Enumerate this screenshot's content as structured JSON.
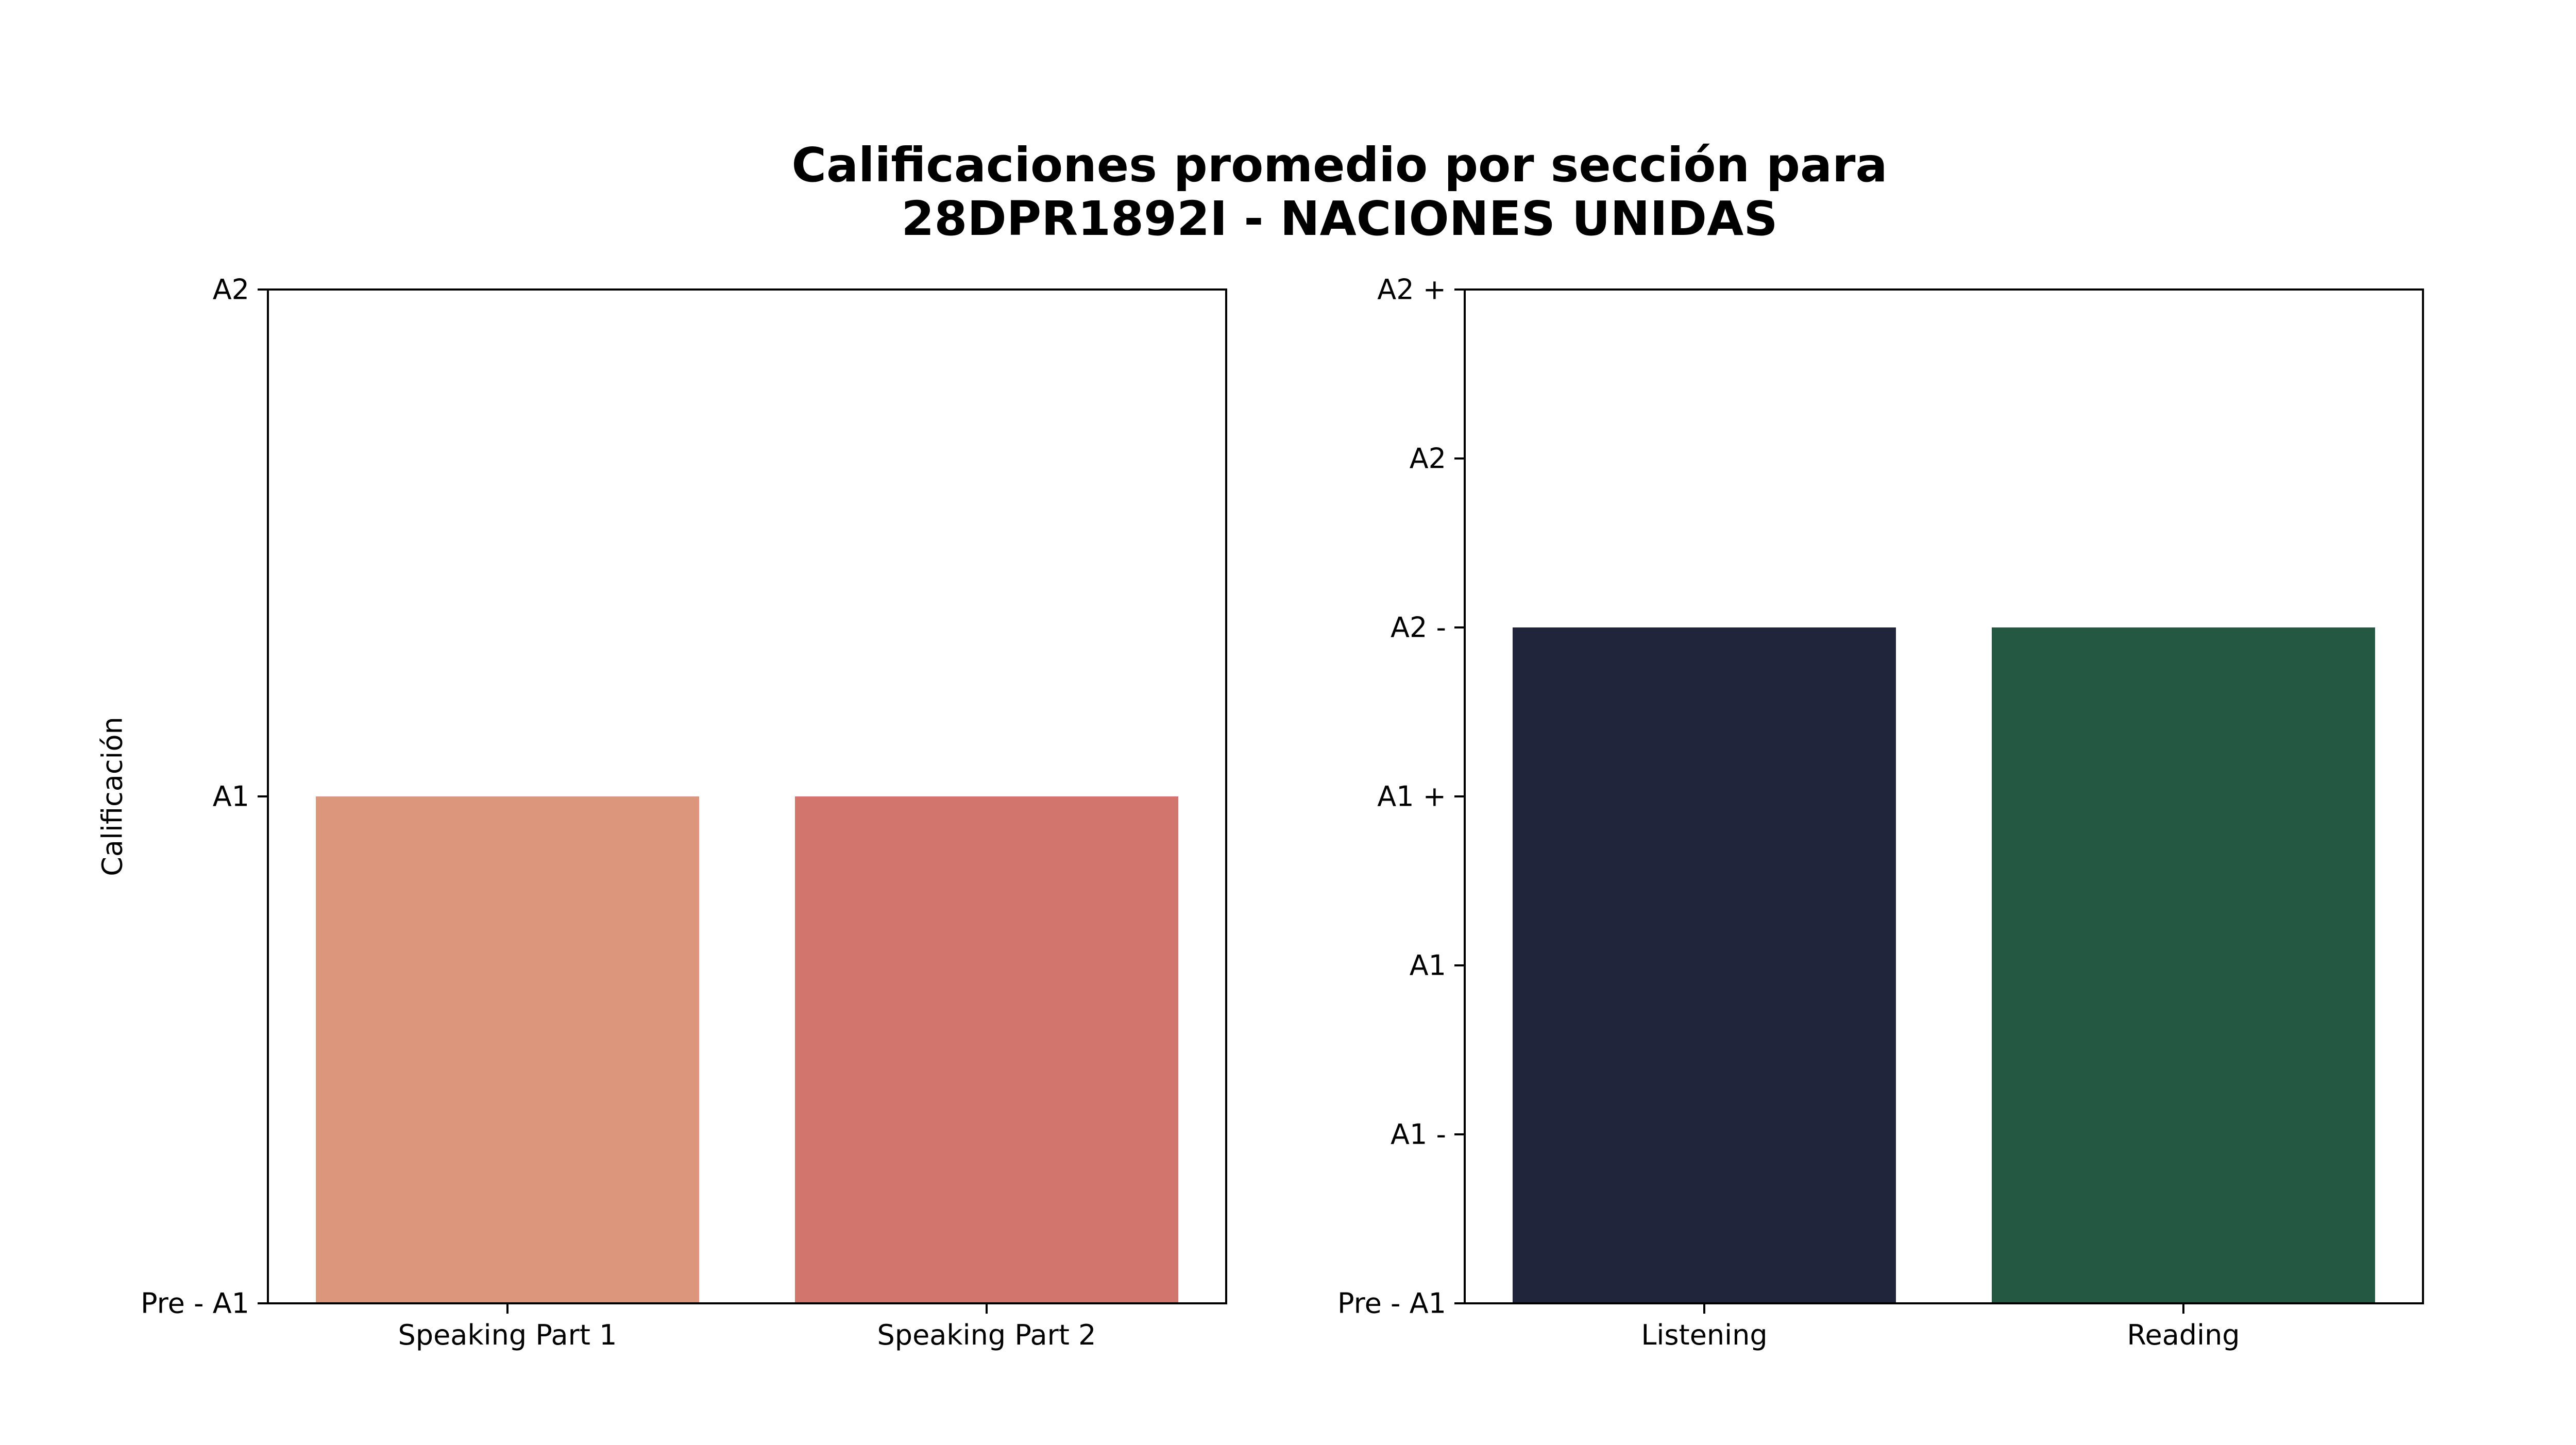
{
  "figure": {
    "title_line1": "Calificaciones promedio por sección para",
    "title_line2": "28DPR1892I - NACIONES UNIDAS"
  },
  "chart_data": [
    {
      "type": "bar",
      "categories": [
        "Speaking Part 1",
        "Speaking Part 2"
      ],
      "values": [
        1,
        1
      ],
      "colors": [
        "#DB967C",
        "#D2756D"
      ],
      "ylabel": "Calificación",
      "ylim": [
        0,
        2
      ],
      "yticks": [
        {
          "value": 0,
          "label": "Pre - A1"
        },
        {
          "value": 1,
          "label": "A1"
        },
        {
          "value": 2,
          "label": "A2"
        }
      ],
      "grid": false
    },
    {
      "type": "bar",
      "categories": [
        "Listening",
        "Reading"
      ],
      "values": [
        4,
        4
      ],
      "colors": [
        "#20253C",
        "#245843"
      ],
      "ylabel": "",
      "ylim": [
        0,
        6
      ],
      "yticks": [
        {
          "value": 0,
          "label": "Pre - A1"
        },
        {
          "value": 1,
          "label": "A1 -"
        },
        {
          "value": 2,
          "label": "A1"
        },
        {
          "value": 3,
          "label": "A1 +"
        },
        {
          "value": 4,
          "label": "A2 -"
        },
        {
          "value": 5,
          "label": "A2"
        },
        {
          "value": 6,
          "label": "A2 +"
        }
      ],
      "grid": false
    }
  ]
}
